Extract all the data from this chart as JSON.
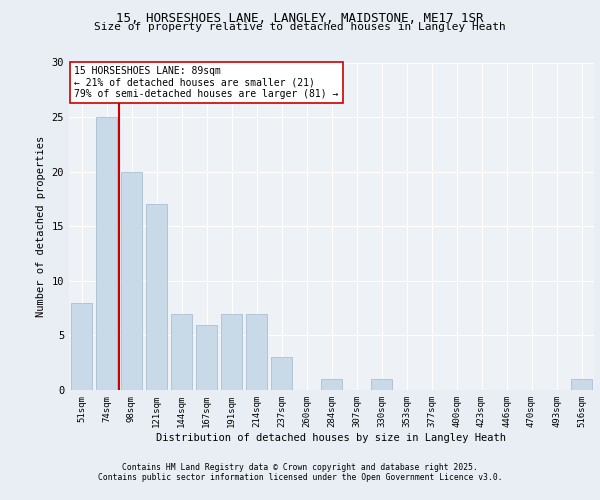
{
  "title1": "15, HORSESHOES LANE, LANGLEY, MAIDSTONE, ME17 1SR",
  "title2": "Size of property relative to detached houses in Langley Heath",
  "xlabel": "Distribution of detached houses by size in Langley Heath",
  "ylabel": "Number of detached properties",
  "categories": [
    "51sqm",
    "74sqm",
    "98sqm",
    "121sqm",
    "144sqm",
    "167sqm",
    "191sqm",
    "214sqm",
    "237sqm",
    "260sqm",
    "284sqm",
    "307sqm",
    "330sqm",
    "353sqm",
    "377sqm",
    "400sqm",
    "423sqm",
    "446sqm",
    "470sqm",
    "493sqm",
    "516sqm"
  ],
  "values": [
    8,
    25,
    20,
    17,
    7,
    6,
    7,
    7,
    3,
    0,
    1,
    0,
    1,
    0,
    0,
    0,
    0,
    0,
    0,
    0,
    1
  ],
  "bar_color": "#c8d9e8",
  "bar_edge_color": "#a0b8cc",
  "vline_x": 1.5,
  "vline_color": "#cc0000",
  "annotation_text": "15 HORSESHOES LANE: 89sqm\n← 21% of detached houses are smaller (21)\n79% of semi-detached houses are larger (81) →",
  "annotation_box_color": "#ffffff",
  "annotation_box_edge": "#cc0000",
  "ylim": [
    0,
    30
  ],
  "yticks": [
    0,
    5,
    10,
    15,
    20,
    25,
    30
  ],
  "bg_color": "#e8eef4",
  "plot_bg_color": "#eef2f7",
  "grid_color": "#ffffff",
  "footer1": "Contains HM Land Registry data © Crown copyright and database right 2025.",
  "footer2": "Contains public sector information licensed under the Open Government Licence v3.0."
}
